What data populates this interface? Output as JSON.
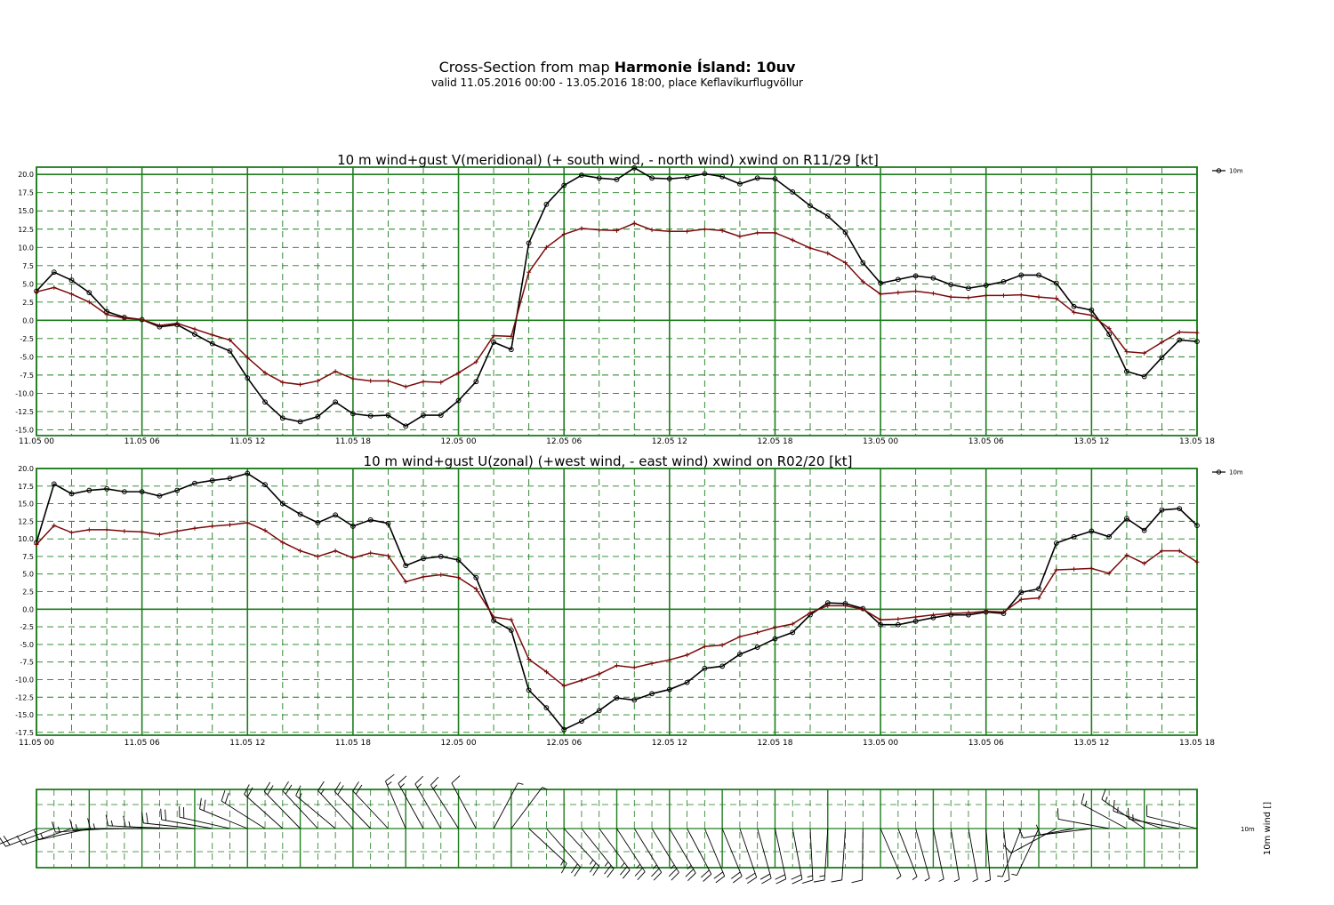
{
  "header": {
    "title_prefix": "Cross-Section from map ",
    "title_bold": "Harmonie Ísland: 10uv",
    "subtitle": "valid 11.05.2016 00:00 - 13.05.2016 18:00, place Keflavíkurflugvöllur"
  },
  "x_tick_labels": [
    "11.05 00",
    "11.05 06",
    "11.05 12",
    "11.05 18",
    "12.05 00",
    "12.05 06",
    "12.05 12",
    "12.05 18",
    "13.05 00",
    "13.05 06",
    "13.05 12",
    "13.05 18"
  ],
  "colors": {
    "grid": "#1e7d1e",
    "wind": "#000000",
    "gust": "#7a0a0a"
  },
  "barbs_panel": {
    "legend": "10m",
    "axis_label": "10m wind []"
  },
  "chart_data": [
    {
      "type": "line",
      "title": "10 m wind+gust V(meridional) (+ south wind, - north wind) xwind on R11/29 [kt]",
      "ylim": [
        -15,
        21
      ],
      "yticks": [
        "20.0",
        "17.5",
        "15.0",
        "12.5",
        "10.0",
        "7.5",
        "5.0",
        "2.5",
        "0.0",
        "-2.5",
        "-5.0",
        "-7.5",
        "-10.0",
        "-12.5",
        "-15.0"
      ],
      "legend": "10m",
      "x_hours": [
        0,
        1,
        2,
        3,
        4,
        5,
        6,
        7,
        8,
        9,
        10,
        11,
        12,
        13,
        14,
        15,
        16,
        17,
        18,
        19,
        20,
        21,
        22,
        23,
        24,
        25,
        26,
        27,
        28,
        29,
        30,
        31,
        32,
        33,
        34,
        35,
        36,
        37,
        38,
        39,
        40,
        41,
        42,
        43,
        44,
        45,
        46,
        47,
        48,
        49,
        50,
        51,
        52,
        53,
        54,
        55,
        56,
        57,
        58,
        59,
        60,
        61,
        62,
        63,
        64,
        65,
        66
      ],
      "series": [
        {
          "name": "10m",
          "values": [
            4.0,
            6.6,
            5.5,
            3.8,
            1.2,
            0.4,
            0.1,
            -0.9,
            -0.6,
            -1.9,
            -3.2,
            -4.2,
            -7.9,
            -11.2,
            -13.4,
            -13.9,
            -13.2,
            -11.2,
            -12.8,
            -13.1,
            -13.0,
            -14.5,
            -13.0,
            -13.0,
            -11.0,
            -8.4,
            -3.0,
            -4.0,
            10.6,
            15.9,
            18.5,
            19.9,
            19.5,
            19.3,
            20.9,
            19.5,
            19.4,
            19.6,
            20.1,
            19.7,
            18.7,
            19.5,
            19.4,
            17.6,
            15.7,
            14.3,
            12.1,
            7.9,
            5.1,
            5.6,
            6.1,
            5.8,
            4.9,
            4.4,
            4.8,
            5.3,
            6.2,
            6.2,
            5.1,
            1.9,
            1.4,
            -1.9,
            -7.0,
            -7.7,
            -5.1,
            -2.7,
            -2.9
          ]
        },
        {
          "values": [
            3.9,
            4.5,
            3.6,
            2.5,
            0.8,
            0.3,
            0.1,
            -0.7,
            -0.4,
            -1.2,
            -2.0,
            -2.7,
            -5.1,
            -7.2,
            -8.5,
            -8.8,
            -8.3,
            -7.0,
            -8.0,
            -8.3,
            -8.3,
            -9.1,
            -8.4,
            -8.5,
            -7.2,
            -5.7,
            -2.1,
            -2.2,
            6.6,
            10.0,
            11.8,
            12.6,
            12.4,
            12.3,
            13.3,
            12.4,
            12.2,
            12.2,
            12.5,
            12.3,
            11.5,
            12.0,
            12.0,
            11.0,
            9.9,
            9.2,
            7.9,
            5.3,
            3.6,
            3.8,
            4.0,
            3.7,
            3.2,
            3.1,
            3.4,
            3.4,
            3.5,
            3.2,
            3.0,
            1.1,
            0.7,
            -1.1,
            -4.3,
            -4.5,
            -3.0,
            -1.6,
            -1.7
          ]
        }
      ]
    },
    {
      "type": "line",
      "title": "10 m wind+gust U(zonal) (+west wind, - east wind) xwind on R02/20 [kt]",
      "ylim": [
        -17.5,
        20
      ],
      "yticks": [
        "20.0",
        "17.5",
        "15.0",
        "12.5",
        "10.0",
        "7.5",
        "5.0",
        "2.5",
        "0.0",
        "-2.5",
        "-5.0",
        "-7.5",
        "-10.0",
        "-12.5",
        "-15.0",
        "-17.5"
      ],
      "legend": "10m",
      "x_hours": [
        0,
        1,
        2,
        3,
        4,
        5,
        6,
        7,
        8,
        9,
        10,
        11,
        12,
        13,
        14,
        15,
        16,
        17,
        18,
        19,
        20,
        21,
        22,
        23,
        24,
        25,
        26,
        27,
        28,
        29,
        30,
        31,
        32,
        33,
        34,
        35,
        36,
        37,
        38,
        39,
        40,
        41,
        42,
        43,
        44,
        45,
        46,
        47,
        48,
        49,
        50,
        51,
        52,
        53,
        54,
        55,
        56,
        57,
        58,
        59,
        60,
        61,
        62,
        63,
        64,
        65,
        66
      ],
      "series": [
        {
          "name": "10m",
          "values": [
            9.5,
            17.8,
            16.4,
            16.9,
            17.1,
            16.7,
            16.7,
            16.1,
            16.9,
            17.9,
            18.3,
            18.6,
            19.3,
            17.7,
            15.0,
            13.5,
            12.3,
            13.4,
            11.8,
            12.7,
            12.2,
            6.2,
            7.2,
            7.5,
            7.0,
            4.5,
            -1.6,
            -3.0,
            -11.5,
            -14.0,
            -17.1,
            -15.9,
            -14.4,
            -12.6,
            -12.9,
            -12.0,
            -11.4,
            -10.4,
            -8.4,
            -8.1,
            -6.4,
            -5.4,
            -4.2,
            -3.3,
            -0.8,
            0.9,
            0.8,
            0.1,
            -2.2,
            -2.2,
            -1.7,
            -1.2,
            -0.8,
            -0.8,
            -0.4,
            -0.6,
            2.4,
            2.9,
            9.4,
            10.3,
            11.1,
            10.3,
            12.9,
            11.2,
            14.1,
            14.3,
            11.9
          ]
        },
        {
          "values": [
            9.2,
            11.9,
            10.9,
            11.3,
            11.3,
            11.1,
            11.0,
            10.6,
            11.1,
            11.5,
            11.8,
            12.0,
            12.3,
            11.2,
            9.5,
            8.3,
            7.5,
            8.3,
            7.3,
            8.0,
            7.6,
            3.9,
            4.6,
            4.9,
            4.5,
            2.9,
            -1.1,
            -1.5,
            -7.1,
            -8.9,
            -10.9,
            -10.1,
            -9.2,
            -8.0,
            -8.3,
            -7.7,
            -7.2,
            -6.5,
            -5.3,
            -5.1,
            -3.9,
            -3.3,
            -2.6,
            -2.1,
            -0.5,
            0.5,
            0.5,
            0.0,
            -1.5,
            -1.4,
            -1.1,
            -0.8,
            -0.6,
            -0.5,
            -0.3,
            -0.4,
            1.4,
            1.6,
            5.6,
            5.7,
            5.8,
            5.1,
            7.7,
            6.5,
            8.3,
            8.3,
            6.7
          ]
        }
      ]
    }
  ]
}
